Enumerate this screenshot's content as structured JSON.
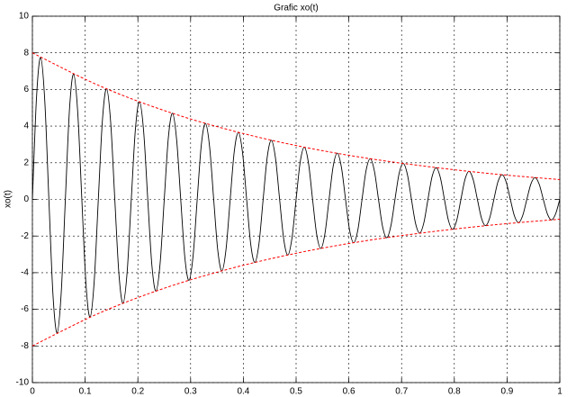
{
  "chart_data": {
    "type": "line",
    "title": "Grafic xo(t)",
    "ylabel": "xo(t)",
    "xlim": [
      0,
      1
    ],
    "ylim": [
      -10,
      10
    ],
    "xticks": [
      0,
      0.1,
      0.2,
      0.3,
      0.4,
      0.5,
      0.6,
      0.7,
      0.8,
      0.9,
      1
    ],
    "yticks": [
      -10,
      -8,
      -6,
      -4,
      -2,
      0,
      2,
      4,
      6,
      8,
      10
    ],
    "grid": true,
    "series": [
      {
        "color": "#000000",
        "line_style": "solid",
        "x": [
          0,
          0.0078125,
          0.015625,
          0.0234375,
          0.03125,
          0.0390625,
          0.046875,
          0.0546875,
          0.0625,
          0.0703125,
          0.078125,
          0.0859375,
          0.09375,
          0.1015625,
          0.109375,
          0.1171875,
          0.125,
          0.1328125,
          0.140625,
          0.1484375,
          0.15625,
          0.1640625,
          0.171875,
          0.1796875,
          0.1875,
          0.1953125,
          0.203125,
          0.2109375,
          0.21875,
          0.2265625,
          0.234375,
          0.2421875,
          0.25,
          0.2578125,
          0.265625,
          0.2734375,
          0.28125,
          0.2890625,
          0.296875,
          0.3046875,
          0.3125,
          0.3203125,
          0.328125,
          0.3359375,
          0.34375,
          0.3515625,
          0.359375,
          0.3671875,
          0.375,
          0.3828125,
          0.390625,
          0.3984375,
          0.40625,
          0.4140625,
          0.421875,
          0.4296875,
          0.4375,
          0.4453125,
          0.453125,
          0.4609375,
          0.46875,
          0.4765625,
          0.484375,
          0.4921875,
          0.5,
          0.5078125,
          0.515625,
          0.5234375,
          0.53125,
          0.5390625,
          0.546875,
          0.5546875,
          0.5625,
          0.5703125,
          0.578125,
          0.5859375,
          0.59375,
          0.6015625,
          0.609375,
          0.6171875,
          0.625,
          0.6328125,
          0.640625,
          0.6484375,
          0.65625,
          0.6640625,
          0.671875,
          0.6796875,
          0.6875,
          0.6953125,
          0.703125,
          0.7109375,
          0.71875,
          0.7265625,
          0.734375,
          0.7421875,
          0.75,
          0.7578125,
          0.765625,
          0.7734375,
          0.78125,
          0.7890625,
          0.796875,
          0.8046875,
          0.8125,
          0.8203125,
          0.828125,
          0.8359375,
          0.84375,
          0.8515625,
          0.859375,
          0.8671875,
          0.875,
          0.8828125,
          0.890625,
          0.8984375,
          0.90625,
          0.9140625,
          0.921875,
          0.9296875,
          0.9375,
          0.9453125,
          0.953125,
          0.9609375,
          0.96875,
          0.9765625,
          0.984375,
          0.9921875,
          1
        ],
        "values": [
          0,
          5.57,
          7.75,
          5.4,
          0,
          -5.23,
          -7.28,
          -5.07,
          0,
          4.91,
          6.84,
          4.76,
          0,
          -4.62,
          -6.43,
          -4.47,
          0,
          4.34,
          6.04,
          4.2,
          0,
          -4.07,
          -5.67,
          -3.95,
          0,
          3.83,
          5.33,
          3.71,
          0,
          -3.6,
          -5.01,
          -3.48,
          0,
          3.38,
          4.7,
          3.27,
          0,
          -3.17,
          -4.42,
          -3.08,
          0,
          2.98,
          4.15,
          2.89,
          0,
          -2.8,
          -3.9,
          -2.71,
          0,
          2.63,
          3.66,
          2.55,
          0,
          -2.47,
          -3.44,
          -2.4,
          0,
          2.32,
          3.23,
          2.25,
          0,
          -2.18,
          -3.04,
          -2.11,
          0,
          2.05,
          2.85,
          1.99,
          0,
          -1.92,
          -2.68,
          -1.87,
          0,
          1.81,
          2.52,
          1.75,
          0,
          -1.7,
          -2.37,
          -1.65,
          0,
          1.6,
          2.22,
          1.55,
          0,
          -1.5,
          -2.09,
          -1.45,
          0,
          1.41,
          1.96,
          1.37,
          0,
          -1.32,
          -1.84,
          -1.28,
          0,
          1.24,
          1.73,
          1.2,
          0,
          -1.17,
          -1.63,
          -1.13,
          0,
          1.1,
          1.53,
          1.06,
          0,
          -1.03,
          -1.43,
          -1,
          0,
          0.97,
          1.35,
          0.94,
          0,
          -0.91,
          -1.27,
          -0.88,
          0,
          0.85,
          1.19,
          0.83,
          0,
          -0.8,
          -1.12,
          -0.78,
          0
        ]
      },
      {
        "color": "#ff0000",
        "line_style": "dashed",
        "x": [
          0,
          0.125,
          0.25,
          0.375,
          0.5,
          0.625,
          0.75,
          0.875,
          1
        ],
        "values": [
          8,
          6.23,
          4.85,
          3.78,
          2.94,
          2.29,
          1.79,
          1.39,
          1.08
        ]
      },
      {
        "color": "#ff0000",
        "line_style": "dashed",
        "x": [
          0,
          0.125,
          0.25,
          0.375,
          0.5,
          0.625,
          0.75,
          0.875,
          1
        ],
        "values": [
          -8,
          -6.23,
          -4.85,
          -3.78,
          -2.94,
          -2.29,
          -1.79,
          -1.39,
          -1.08
        ]
      }
    ]
  }
}
